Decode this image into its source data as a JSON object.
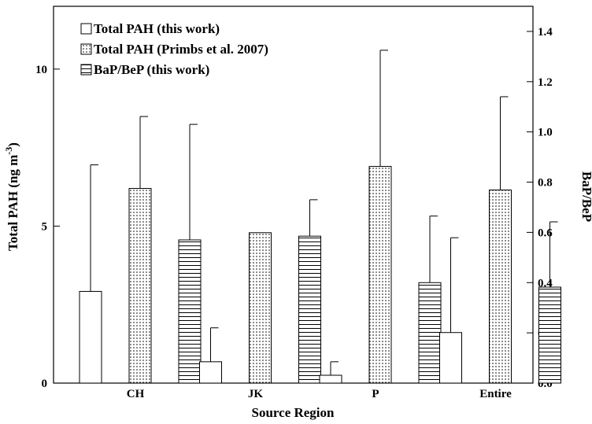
{
  "chart_data": {
    "type": "bar",
    "xlabel": "Source Region",
    "ylabel": [
      "Total PAH (ng m",
      "-3",
      ")"
    ],
    "y2label": "BaP/BeP",
    "categories": [
      "CH",
      "JK",
      "P",
      "Entire"
    ],
    "series": [
      {
        "name": "Total PAH (this work)",
        "color": "#000000",
        "pattern": "none",
        "axis": "y",
        "values": [
          2.92,
          0.68,
          0.25,
          1.61
        ],
        "errors": [
          4.03,
          1.08,
          0.43,
          3.02
        ]
      },
      {
        "name": "Total PAH (Primbs et al. 2007)",
        "color": "#000000",
        "pattern": "dots",
        "axis": "y",
        "values": [
          6.2,
          4.79,
          6.9,
          6.15
        ],
        "errors": [
          2.29,
          null,
          3.7,
          2.97
        ]
      },
      {
        "name": "BaP/BeP (this work)",
        "color": "#000000",
        "pattern": "hlines",
        "axis": "y2",
        "values": [
          0.57,
          0.585,
          0.4,
          0.382
        ],
        "errors": [
          0.46,
          0.145,
          0.265,
          0.26
        ]
      }
    ],
    "ylim": [
      0,
      12
    ],
    "yticks": [
      0,
      5,
      10
    ],
    "y2lim": [
      0,
      1.5
    ],
    "y2ticks": [
      {
        "value": 0,
        "label": "0.0"
      },
      {
        "value": 0.2,
        "label": "0.2"
      },
      {
        "value": 0.4,
        "label": "0.4"
      },
      {
        "value": 0.6,
        "label": "0.6"
      },
      {
        "value": 0.8,
        "label": "0.8"
      },
      {
        "value": 1.0,
        "label": "1.0"
      },
      {
        "value": 1.2,
        "label": "1.2"
      },
      {
        "value": 1.4,
        "label": "1.4"
      }
    ],
    "legend": "upper left",
    "grid": false
  }
}
